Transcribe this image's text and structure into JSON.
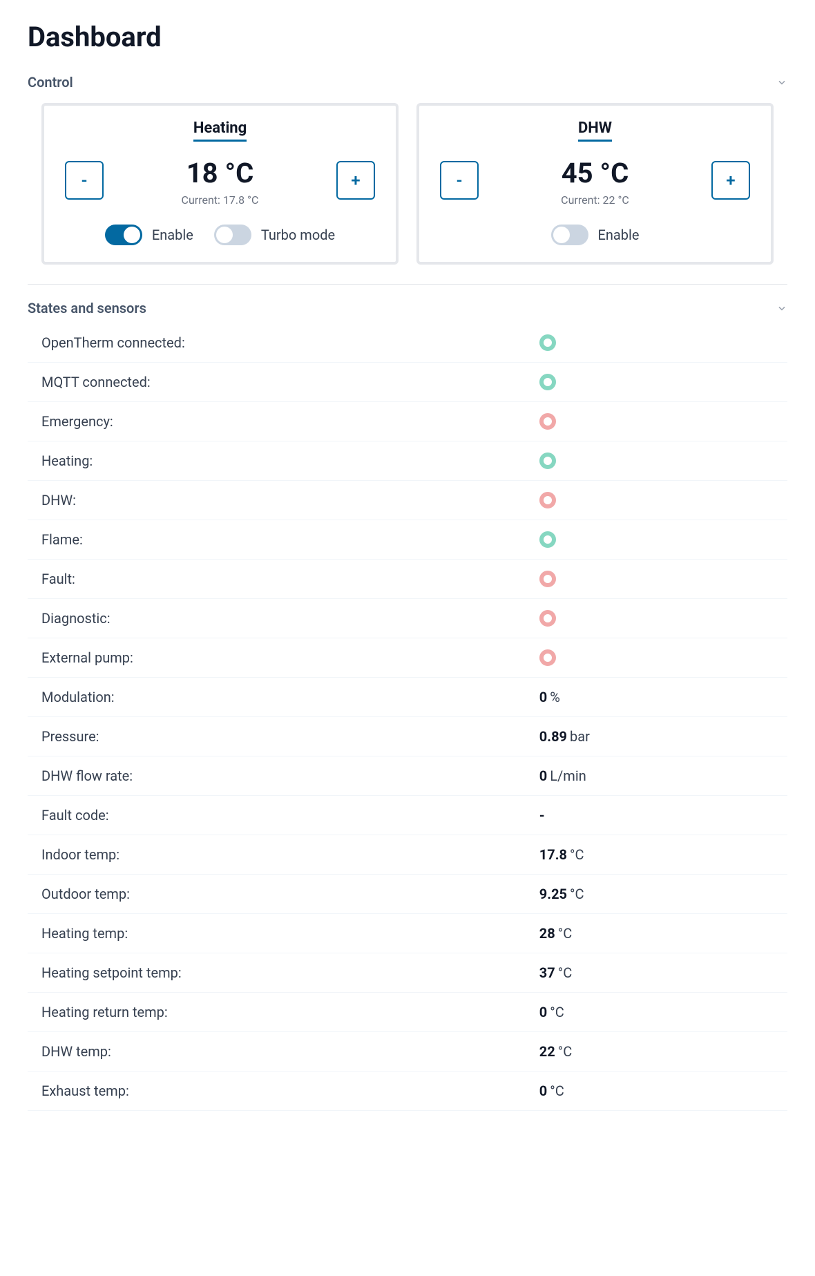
{
  "page": {
    "title": "Dashboard"
  },
  "colors": {
    "accent": "#0369a1",
    "status_ok": "#86d7c1",
    "status_bad": "#f1a8a8",
    "card_border": "#e5e7eb",
    "text_muted": "#6b7280"
  },
  "sections": {
    "control": {
      "title": "Control",
      "expanded": true
    },
    "states": {
      "title": "States and sensors",
      "expanded": true
    }
  },
  "control": {
    "heating": {
      "title": "Heating",
      "setpoint": "18 °C",
      "current": "Current: 17.8 °C",
      "minus": "-",
      "plus": "+",
      "enable": {
        "label": "Enable",
        "on": true
      },
      "turbo": {
        "label": "Turbo mode",
        "on": false
      }
    },
    "dhw": {
      "title": "DHW",
      "setpoint": "45 °C",
      "current": "Current: 22 °C",
      "minus": "-",
      "plus": "+",
      "enable": {
        "label": "Enable",
        "on": false
      }
    }
  },
  "states": [
    {
      "key": "opentherm",
      "label": "OpenTherm connected:",
      "type": "status",
      "status": "ok"
    },
    {
      "key": "mqtt",
      "label": "MQTT connected:",
      "type": "status",
      "status": "ok"
    },
    {
      "key": "emergency",
      "label": "Emergency:",
      "type": "status",
      "status": "bad"
    },
    {
      "key": "heating",
      "label": "Heating:",
      "type": "status",
      "status": "ok"
    },
    {
      "key": "dhw",
      "label": "DHW:",
      "type": "status",
      "status": "bad"
    },
    {
      "key": "flame",
      "label": "Flame:",
      "type": "status",
      "status": "ok"
    },
    {
      "key": "fault",
      "label": "Fault:",
      "type": "status",
      "status": "bad"
    },
    {
      "key": "diagnostic",
      "label": "Diagnostic:",
      "type": "status",
      "status": "bad"
    },
    {
      "key": "extpump",
      "label": "External pump:",
      "type": "status",
      "status": "bad"
    },
    {
      "key": "modulation",
      "label": "Modulation:",
      "type": "value",
      "value": "0",
      "unit": " %"
    },
    {
      "key": "pressure",
      "label": "Pressure:",
      "type": "value",
      "value": "0.89",
      "unit": " bar"
    },
    {
      "key": "flowrate",
      "label": "DHW flow rate:",
      "type": "value",
      "value": "0",
      "unit": " L/min"
    },
    {
      "key": "faultcode",
      "label": "Fault code:",
      "type": "value",
      "value": "-",
      "unit": ""
    },
    {
      "key": "indoor",
      "label": "Indoor temp:",
      "type": "value",
      "value": "17.8",
      "unit": " °C"
    },
    {
      "key": "outdoor",
      "label": "Outdoor temp:",
      "type": "value",
      "value": "9.25",
      "unit": " °C"
    },
    {
      "key": "heattemp",
      "label": "Heating temp:",
      "type": "value",
      "value": "28",
      "unit": " °C"
    },
    {
      "key": "heatset",
      "label": "Heating setpoint temp:",
      "type": "value",
      "value": "37",
      "unit": " °C"
    },
    {
      "key": "heatret",
      "label": "Heating return temp:",
      "type": "value",
      "value": "0",
      "unit": " °C"
    },
    {
      "key": "dhwtemp",
      "label": "DHW temp:",
      "type": "value",
      "value": "22",
      "unit": " °C"
    },
    {
      "key": "exhaust",
      "label": "Exhaust temp:",
      "type": "value",
      "value": "0",
      "unit": " °C"
    }
  ]
}
